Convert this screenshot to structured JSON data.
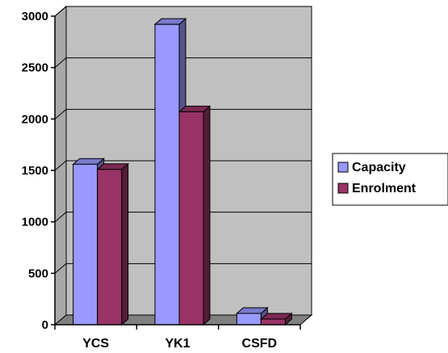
{
  "chart_data": {
    "type": "bar",
    "categories": [
      "YCS",
      "YK1",
      "CSFD"
    ],
    "series": [
      {
        "name": "Capacity",
        "values": [
          1560,
          2920,
          110
        ]
      },
      {
        "name": "Enrolment",
        "values": [
          1510,
          2070,
          55
        ]
      }
    ],
    "title": "",
    "xlabel": "",
    "ylabel": "",
    "ylim": [
      0,
      3000
    ],
    "yticks": [
      "0",
      "500",
      "1000",
      "1500",
      "2000",
      "2500",
      "3000"
    ],
    "grid": true,
    "legend": "right",
    "style": "3d-clustered-column",
    "colors": {
      "Capacity": "#9999ff",
      "Enrolment": "#993366",
      "plot_background": "#c0c0c0",
      "floor": "#808080"
    }
  }
}
